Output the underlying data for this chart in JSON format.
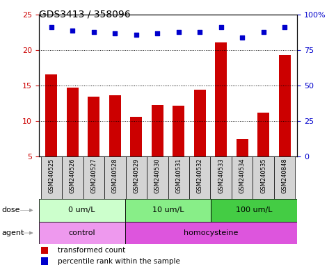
{
  "title": "GDS3413 / 358096",
  "samples": [
    "GSM240525",
    "GSM240526",
    "GSM240527",
    "GSM240528",
    "GSM240529",
    "GSM240530",
    "GSM240531",
    "GSM240532",
    "GSM240533",
    "GSM240534",
    "GSM240535",
    "GSM240848"
  ],
  "transformed_count": [
    16.6,
    14.7,
    13.4,
    13.6,
    10.6,
    12.2,
    12.1,
    14.4,
    21.1,
    7.4,
    11.2,
    19.3
  ],
  "percentile_rank": [
    91,
    89,
    88,
    87,
    86,
    87,
    88,
    88,
    91,
    84,
    88,
    91
  ],
  "bar_color": "#cc0000",
  "scatter_color": "#0000cc",
  "ylim_left": [
    5,
    25
  ],
  "ylim_right": [
    0,
    100
  ],
  "yticks_left": [
    5,
    10,
    15,
    20,
    25
  ],
  "yticks_right": [
    0,
    25,
    50,
    75,
    100
  ],
  "ytick_labels_right": [
    "0",
    "25",
    "50",
    "75",
    "100%"
  ],
  "dose_groups": [
    {
      "label": "0 um/L",
      "start": 0,
      "end": 3,
      "color": "#ccffcc"
    },
    {
      "label": "10 um/L",
      "start": 4,
      "end": 7,
      "color": "#88ee88"
    },
    {
      "label": "100 um/L",
      "start": 8,
      "end": 11,
      "color": "#44cc44"
    }
  ],
  "agent_groups": [
    {
      "label": "control",
      "start": 0,
      "end": 3,
      "color": "#ee99ee"
    },
    {
      "label": "homocysteine",
      "start": 4,
      "end": 11,
      "color": "#dd55dd"
    }
  ],
  "dose_label": "dose",
  "agent_label": "agent",
  "legend_red_label": "transformed count",
  "legend_blue_label": "percentile rank within the sample",
  "sample_label_bg": "#d4d4d4",
  "grid_color": "black",
  "grid_linestyle": ":"
}
